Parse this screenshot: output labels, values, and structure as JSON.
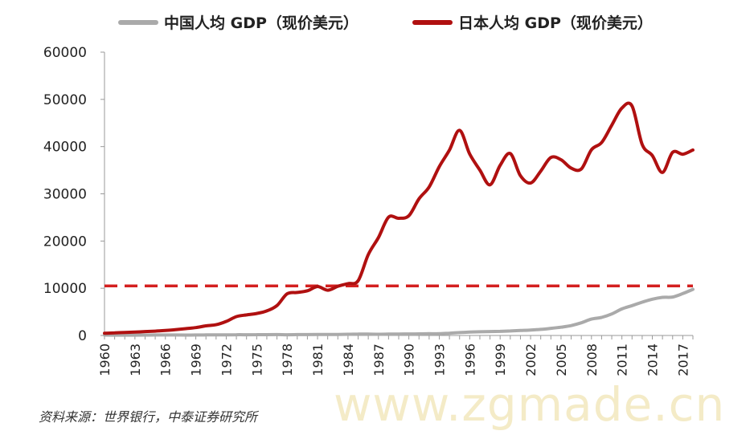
{
  "chart_data": {
    "type": "line",
    "title": "",
    "xlabel": "",
    "ylabel": "",
    "ylim": [
      0,
      60000
    ],
    "xlim": [
      1960,
      2018
    ],
    "y_ticks": [
      "0",
      "10000",
      "20000",
      "30000",
      "40000",
      "50000",
      "60000"
    ],
    "x_ticks": [
      "1960",
      "1963",
      "1966",
      "1969",
      "1972",
      "1975",
      "1978",
      "1981",
      "1984",
      "1987",
      "1990",
      "1993",
      "1996",
      "1999",
      "2002",
      "2005",
      "2008",
      "2011",
      "2014",
      "2017"
    ],
    "grid": false,
    "legend_position": "top",
    "series": [
      {
        "name": "中国人均 GDP（现价美元）",
        "color": "#aaaaaa",
        "x": [
          1960,
          1961,
          1962,
          1963,
          1964,
          1965,
          1966,
          1967,
          1968,
          1969,
          1970,
          1971,
          1972,
          1973,
          1974,
          1975,
          1976,
          1977,
          1978,
          1979,
          1980,
          1981,
          1982,
          1983,
          1984,
          1985,
          1986,
          1987,
          1988,
          1989,
          1990,
          1991,
          1992,
          1993,
          1994,
          1995,
          1996,
          1997,
          1998,
          1999,
          2000,
          2001,
          2002,
          2003,
          2004,
          2005,
          2006,
          2007,
          2008,
          2009,
          2010,
          2011,
          2012,
          2013,
          2014,
          2015,
          2016,
          2017,
          2018
        ],
        "y": [
          90,
          76,
          70,
          74,
          85,
          98,
          104,
          96,
          91,
          100,
          113,
          119,
          132,
          157,
          160,
          178,
          165,
          185,
          156,
          184,
          195,
          197,
          203,
          225,
          250,
          294,
          282,
          252,
          284,
          311,
          318,
          333,
          366,
          377,
          473,
          610,
          709,
          782,
          829,
          873,
          959,
          1053,
          1149,
          1289,
          1509,
          1753,
          2099,
          2694,
          3468,
          3832,
          4550,
          5618,
          6317,
          7051,
          7679,
          8066,
          8148,
          8879,
          9771
        ]
      },
      {
        "name": "日本人均 GDP（现价美元）",
        "color": "#b01010",
        "x": [
          1960,
          1961,
          1962,
          1963,
          1964,
          1965,
          1966,
          1967,
          1968,
          1969,
          1970,
          1971,
          1972,
          1973,
          1974,
          1975,
          1976,
          1977,
          1978,
          1979,
          1980,
          1981,
          1982,
          1983,
          1984,
          1985,
          1986,
          1987,
          1988,
          1989,
          1990,
          1991,
          1992,
          1993,
          1994,
          1995,
          1996,
          1997,
          1998,
          1999,
          2000,
          2001,
          2002,
          2003,
          2004,
          2005,
          2006,
          2007,
          2008,
          2009,
          2010,
          2011,
          2012,
          2013,
          2014,
          2015,
          2016,
          2017,
          2018
        ],
        "y": [
          479,
          564,
          633,
          718,
          836,
          920,
          1058,
          1228,
          1450,
          1669,
          2037,
          2273,
          2967,
          3997,
          4354,
          4659,
          5197,
          6335,
          8821,
          9105,
          9465,
          10361,
          9578,
          10425,
          10985,
          11585,
          17111,
          20745,
          25052,
          24813,
          25359,
          28925,
          31465,
          35766,
          39269,
          43440,
          38437,
          35022,
          31903,
          36027,
          38532,
          33846,
          32289,
          34808,
          37689,
          37218,
          35434,
          35275,
          39339,
          40855,
          44508,
          48168,
          48603,
          40454,
          38109,
          34524,
          38794,
          38387,
          39287
        ]
      }
    ],
    "reference_line": {
      "value": 10500,
      "color": "#d42020",
      "style": "dashed"
    }
  },
  "source_note": "资料来源：世界银行，中泰证券研究所",
  "watermark": "www.zgmade.cn"
}
